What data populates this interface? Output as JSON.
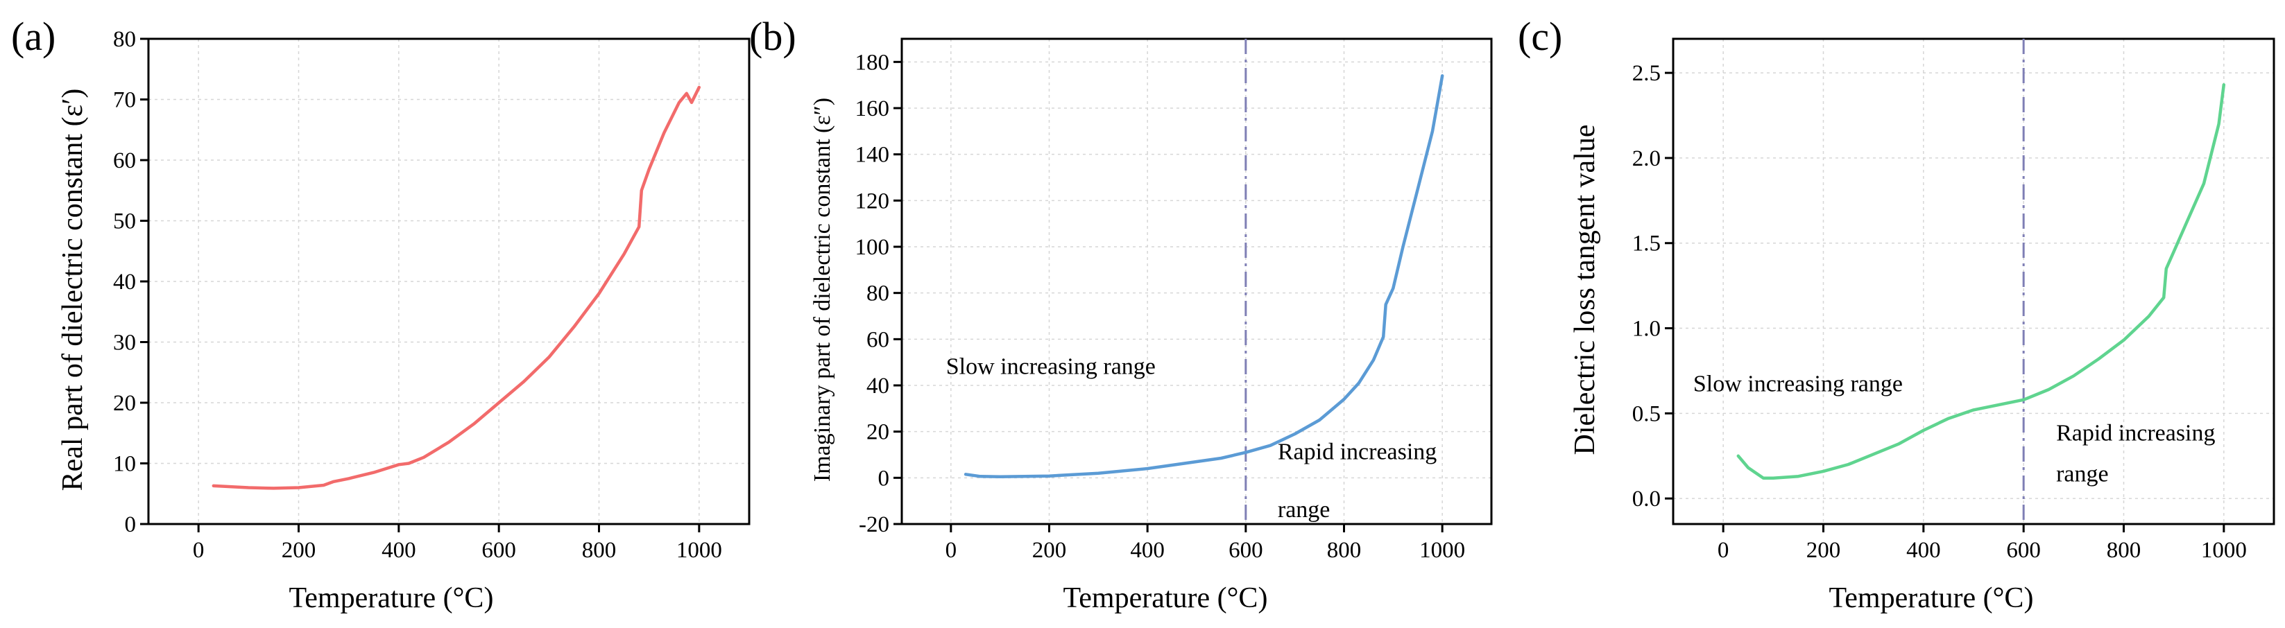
{
  "chart_data": [
    {
      "panel": "(a)",
      "type": "line",
      "xlabel": "Temperature (°C)",
      "ylabel": "Real part of dielectric constant (ε′)",
      "xlim": [
        -100,
        1100
      ],
      "ylim": [
        0,
        80
      ],
      "xticks": [
        0,
        200,
        400,
        600,
        800,
        1000
      ],
      "yticks": [
        0,
        10,
        20,
        30,
        40,
        50,
        60,
        70,
        80
      ],
      "grid": true,
      "color": "#f26b6b",
      "series": [
        {
          "x": [
            30,
            100,
            150,
            200,
            250,
            270,
            300,
            350,
            400,
            420,
            450,
            500,
            550,
            600,
            650,
            700,
            750,
            800,
            850,
            880,
            885,
            900,
            930,
            960,
            975,
            985,
            1000
          ],
          "y": [
            6.3,
            6.0,
            5.9,
            6.0,
            6.4,
            7.0,
            7.5,
            8.5,
            9.8,
            10.0,
            11.0,
            13.5,
            16.5,
            20.0,
            23.5,
            27.5,
            32.5,
            38.0,
            44.5,
            49.0,
            55.0,
            58.5,
            64.5,
            69.5,
            71.0,
            69.5,
            72.0
          ]
        }
      ],
      "annotations": []
    },
    {
      "panel": "(b)",
      "type": "line",
      "xlabel": "Temperature (°C)",
      "ylabel": "Imaginary part of dielectric constant (ε″)",
      "xlim": [
        -100,
        1100
      ],
      "ylim": [
        -20,
        190
      ],
      "xticks": [
        0,
        200,
        400,
        600,
        800,
        1000
      ],
      "yticks": [
        -20,
        0,
        20,
        40,
        60,
        80,
        100,
        120,
        140,
        160,
        180
      ],
      "grid": true,
      "color": "#5b9bd5",
      "vline": 600,
      "series": [
        {
          "x": [
            30,
            60,
            100,
            200,
            300,
            400,
            500,
            550,
            600,
            650,
            700,
            750,
            800,
            830,
            860,
            880,
            885,
            900,
            920,
            950,
            980,
            1000
          ],
          "y": [
            1.5,
            0.6,
            0.5,
            0.8,
            2,
            4,
            7,
            8.5,
            11,
            14,
            19,
            25,
            34,
            41,
            51,
            61,
            75,
            82,
            100,
            125,
            150,
            174
          ]
        }
      ],
      "annotations": [
        {
          "text": "Slow increasing range",
          "x": -10,
          "y": 45
        },
        {
          "text": "Rapid increasing",
          "x": 665,
          "y": 8
        },
        {
          "text": "range",
          "x": 665,
          "y": -17
        }
      ]
    },
    {
      "panel": "(c)",
      "type": "line",
      "xlabel": "Temperature (°C)",
      "ylabel": "Dielectric loss tangent value",
      "xlim": [
        -100,
        1100
      ],
      "ylim": [
        -0.15,
        2.7
      ],
      "xticks": [
        0,
        200,
        400,
        600,
        800,
        1000
      ],
      "yticks": [
        0.0,
        0.5,
        1.0,
        1.5,
        2.0,
        2.5
      ],
      "grid": true,
      "color": "#5fd48f",
      "vline": 600,
      "series": [
        {
          "x": [
            30,
            50,
            80,
            100,
            150,
            200,
            250,
            300,
            350,
            400,
            450,
            500,
            550,
            600,
            650,
            700,
            750,
            800,
            850,
            880,
            885,
            900,
            930,
            960,
            990,
            1000
          ],
          "y": [
            0.25,
            0.18,
            0.12,
            0.12,
            0.13,
            0.16,
            0.2,
            0.26,
            0.32,
            0.4,
            0.47,
            0.52,
            0.55,
            0.58,
            0.64,
            0.72,
            0.82,
            0.93,
            1.07,
            1.18,
            1.35,
            1.45,
            1.65,
            1.85,
            2.2,
            2.43
          ]
        }
      ],
      "annotations": [
        {
          "text": "Slow increasing range",
          "x": -60,
          "y": 0.63
        },
        {
          "text": "Rapid increasing",
          "x": 665,
          "y": 0.34
        },
        {
          "text": "range",
          "x": 665,
          "y": 0.1
        }
      ]
    }
  ]
}
